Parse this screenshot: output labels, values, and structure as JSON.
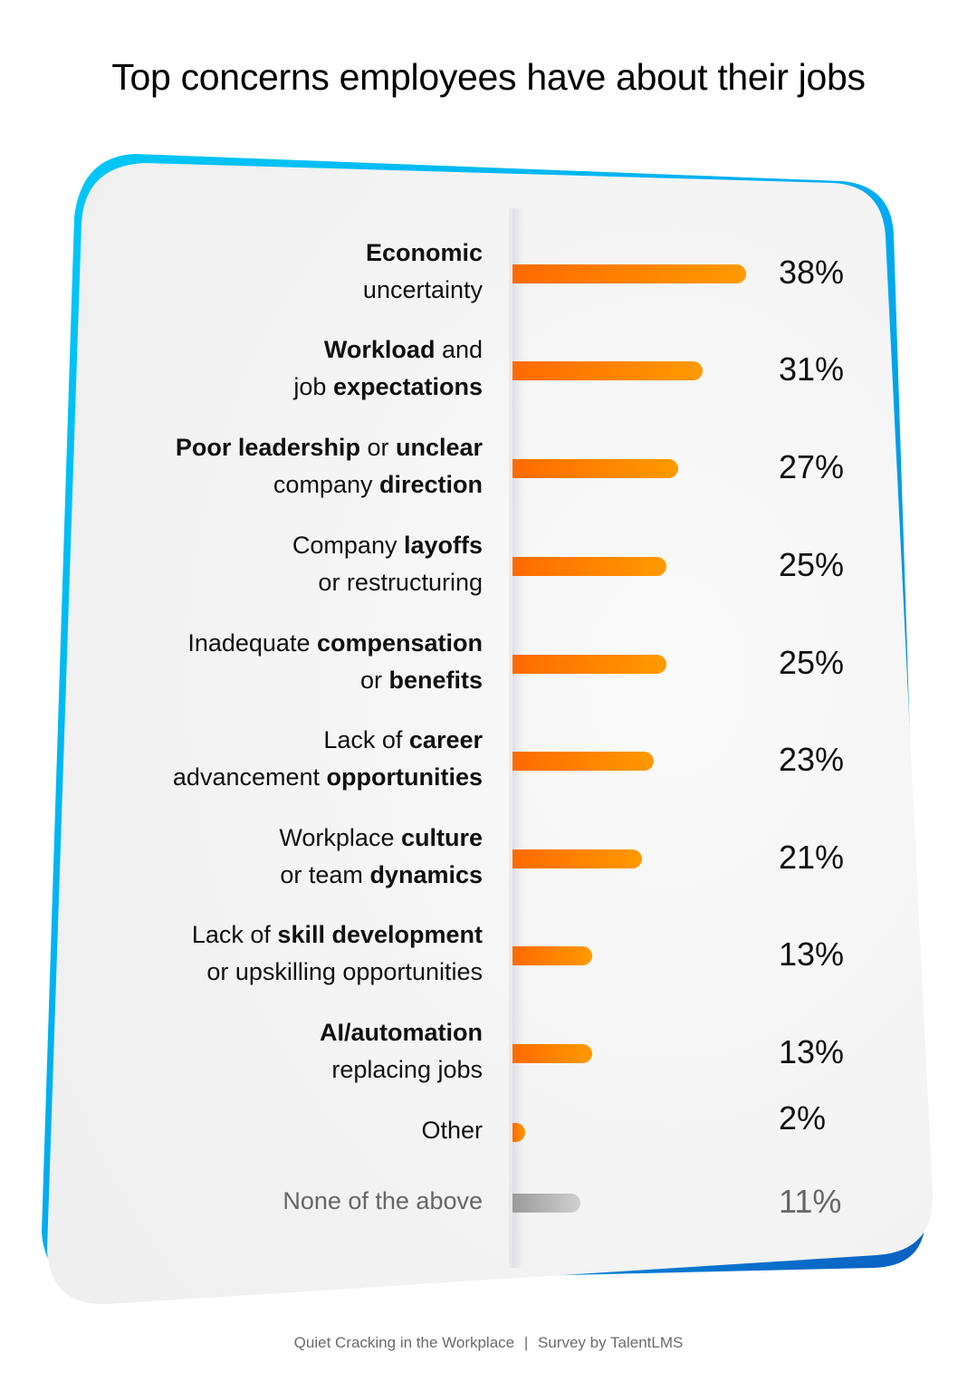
{
  "colors": {
    "bar_start": "#ff6a00",
    "bar_end": "#ff9a00",
    "muted_bar_start": "#9a9a9a",
    "muted_bar_end": "#d0d0d0",
    "card_background": "#f1f1f1",
    "frame_accent_left": "#00c8f8",
    "frame_accent_right": "#0a6fc8",
    "text_primary": "#111111",
    "text_muted": "#666666"
  },
  "chart_data": {
    "type": "bar",
    "orientation": "horizontal",
    "title": "Top concerns employees have about their jobs",
    "xlabel": "",
    "ylabel": "",
    "unit": "%",
    "xlim": [
      0,
      38
    ],
    "grid": false,
    "categories": [
      "Economic uncertainty",
      "Workload and job expectations",
      "Poor leadership or unclear company direction",
      "Company layoffs or restructuring",
      "Inadequate compensation or benefits",
      "Lack of career advancement opportunities",
      "Workplace culture or team dynamics",
      "Lack of skill development or upskilling opportunities",
      "AI/automation replacing jobs",
      "Other",
      "None of the above"
    ],
    "values": [
      38,
      31,
      27,
      25,
      25,
      23,
      21,
      13,
      13,
      2,
      11
    ],
    "value_labels": [
      "38%",
      "31%",
      "27%",
      "25%",
      "25%",
      "23%",
      "21%",
      "13%",
      "13%",
      "2%",
      "11%"
    ],
    "muted": [
      false,
      false,
      false,
      false,
      false,
      false,
      false,
      false,
      false,
      false,
      true
    ],
    "label_lines": [
      [
        [
          {
            "t": "Economic",
            "b": true
          }
        ],
        [
          {
            "t": "uncertainty",
            "b": false
          }
        ]
      ],
      [
        [
          {
            "t": "Workload",
            "b": true
          },
          {
            "t": " and",
            "b": false
          }
        ],
        [
          {
            "t": "job ",
            "b": false
          },
          {
            "t": "expectations",
            "b": true
          }
        ]
      ],
      [
        [
          {
            "t": "Poor leadership",
            "b": true
          },
          {
            "t": " or ",
            "b": false
          },
          {
            "t": "unclear",
            "b": true
          }
        ],
        [
          {
            "t": "company ",
            "b": false
          },
          {
            "t": "direction",
            "b": true
          }
        ]
      ],
      [
        [
          {
            "t": "Company ",
            "b": false
          },
          {
            "t": "layoffs",
            "b": true
          }
        ],
        [
          {
            "t": "or restructuring",
            "b": false
          }
        ]
      ],
      [
        [
          {
            "t": "Inadequate ",
            "b": false
          },
          {
            "t": "compensation",
            "b": true
          }
        ],
        [
          {
            "t": "or ",
            "b": false
          },
          {
            "t": "benefits",
            "b": true
          }
        ]
      ],
      [
        [
          {
            "t": "Lack of ",
            "b": false
          },
          {
            "t": "career",
            "b": true
          }
        ],
        [
          {
            "t": "advancement ",
            "b": false
          },
          {
            "t": "opportunities",
            "b": true
          }
        ]
      ],
      [
        [
          {
            "t": "Workplace ",
            "b": false
          },
          {
            "t": "culture",
            "b": true
          }
        ],
        [
          {
            "t": "or team ",
            "b": false
          },
          {
            "t": "dynamics",
            "b": true
          }
        ]
      ],
      [
        [
          {
            "t": "Lack of ",
            "b": false
          },
          {
            "t": "skill development",
            "b": true
          }
        ],
        [
          {
            "t": "or upskilling opportunities",
            "b": false
          }
        ]
      ],
      [
        [
          {
            "t": "AI/automation",
            "b": true
          }
        ],
        [
          {
            "t": "replacing jobs",
            "b": false
          }
        ]
      ],
      [
        [
          {
            "t": "Other",
            "b": false
          }
        ]
      ],
      [
        [
          {
            "t": "None of the above",
            "b": false
          }
        ]
      ]
    ]
  },
  "footer": {
    "source": "Quiet Cracking in the Workplace",
    "separator": "|",
    "publisher": "Survey by TalentLMS"
  }
}
